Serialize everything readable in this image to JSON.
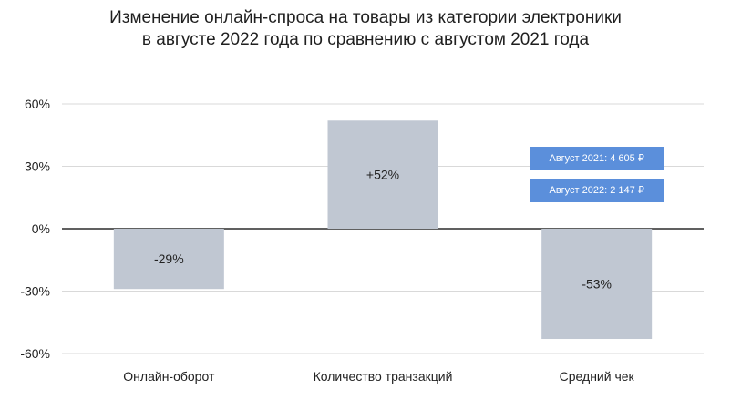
{
  "chart_data": {
    "type": "bar",
    "title": [
      "Изменение онлайн-спроса на товары из категории электроники",
      "в августе 2022 года по сравнению с августом 2021 года"
    ],
    "categories": [
      "Онлайн-оборот",
      "Количество транзакций",
      "Средний чек"
    ],
    "values": [
      -29,
      52,
      -53
    ],
    "data_labels": [
      "-29%",
      "+52%",
      "-53%"
    ],
    "yticks": [
      60,
      30,
      0,
      -30,
      -60
    ],
    "ytick_labels": [
      "60%",
      "30%",
      "0%",
      "-30%",
      "-60%"
    ],
    "ylim": [
      -60,
      60
    ],
    "grid": true,
    "bar_color": "#c0c7d2",
    "annotations": [
      "Август 2021: 4 605 ₽",
      "Август 2022: 2 147 ₽"
    ],
    "annotation_color": "#5b8fdb"
  }
}
